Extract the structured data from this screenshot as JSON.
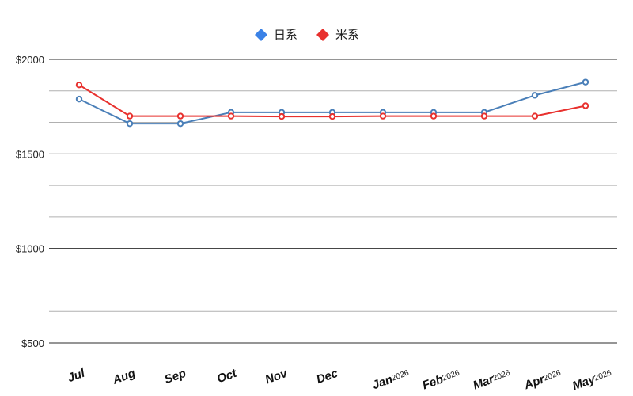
{
  "chart_data": {
    "type": "line",
    "title": "",
    "xlabel": "",
    "ylabel": "",
    "categories": [
      {
        "label": "Jul",
        "sup": ""
      },
      {
        "label": "Aug",
        "sup": ""
      },
      {
        "label": "Sep",
        "sup": ""
      },
      {
        "label": "Oct",
        "sup": ""
      },
      {
        "label": "Nov",
        "sup": ""
      },
      {
        "label": "Dec",
        "sup": ""
      },
      {
        "label": "Jan",
        "sup": "2026"
      },
      {
        "label": "Feb",
        "sup": "2026"
      },
      {
        "label": "Mar",
        "sup": "2026"
      },
      {
        "label": "Apr",
        "sup": "2026"
      },
      {
        "label": "May",
        "sup": "2026"
      }
    ],
    "series": [
      {
        "name": "日系",
        "color": "#4a7fb8",
        "legend_color": "#3b82e6",
        "values": [
          1790,
          1660,
          1660,
          1720,
          1720,
          1720,
          1720,
          1720,
          1720,
          1810,
          1880
        ]
      },
      {
        "name": "米系",
        "color": "#e8312e",
        "legend_color": "#e8312e",
        "values": [
          1865,
          1700,
          1700,
          1700,
          1698,
          1698,
          1700,
          1700,
          1700,
          1700,
          1755
        ]
      }
    ],
    "yticks": [
      {
        "value": 2000,
        "label": "$2000"
      },
      {
        "value": 1500,
        "label": "$1500"
      },
      {
        "value": 1000,
        "label": "$1000"
      },
      {
        "value": 500,
        "label": "$500"
      }
    ],
    "minor_grid_values": [
      1833.33,
      1666.67,
      1333.33,
      1166.67,
      833.33,
      666.67
    ],
    "ylim": [
      500,
      2000
    ],
    "grid": true,
    "legend_position": "top-center"
  }
}
